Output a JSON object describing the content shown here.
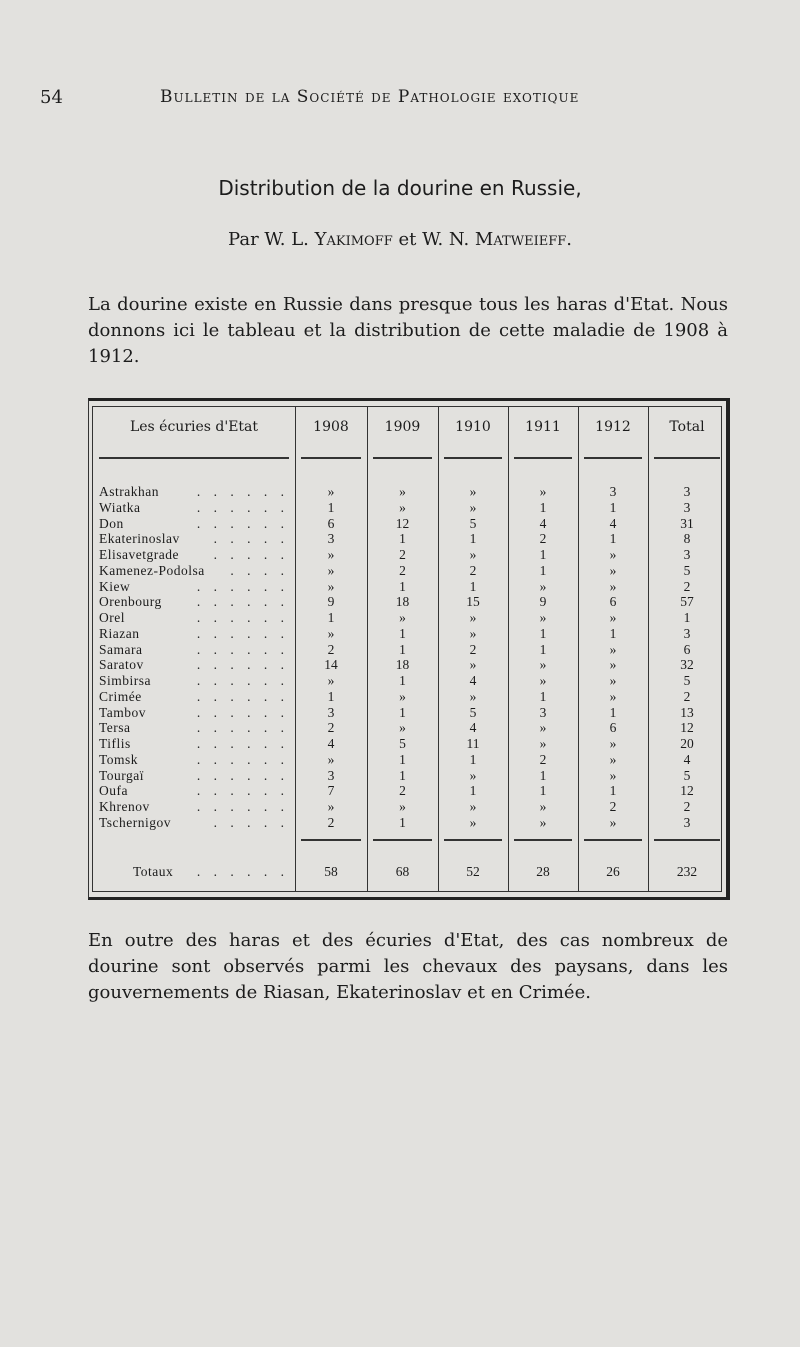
{
  "page_number": "54",
  "running_header": "Bulletin de la Société de Pathologie exotique",
  "title": "Distribution de la dourine en Russie,",
  "authors": {
    "prefix": "Par",
    "author1": "W. L. Yakimoff",
    "conj": "et",
    "author2": "W. N. Matweieff."
  },
  "intro": "La dourine existe en Russie dans presque tous les haras d'Etat. Nous donnons ici le tableau et la distribution de cette maladie de 1908 à 1912.",
  "table": {
    "headers": [
      "Les écuries d'Etat",
      "1908",
      "1909",
      "1910",
      "1911",
      "1912",
      "Total"
    ],
    "rows": [
      [
        "Astrakhan",
        "»",
        "»",
        "»",
        "»",
        "3",
        "3"
      ],
      [
        "Wiatka",
        "1",
        "»",
        "»",
        "1",
        "1",
        "3"
      ],
      [
        "Don",
        "6",
        "12",
        "5",
        "4",
        "4",
        "31"
      ],
      [
        "Ekaterinoslav",
        "3",
        "1",
        "1",
        "2",
        "1",
        "8"
      ],
      [
        "Elisavetgrade",
        "»",
        "2",
        "»",
        "1",
        "»",
        "3"
      ],
      [
        "Kamenez-Podolsa",
        "»",
        "2",
        "2",
        "1",
        "»",
        "5"
      ],
      [
        "Kiew",
        "»",
        "1",
        "1",
        "»",
        "»",
        "2"
      ],
      [
        "Orenbourg",
        "9",
        "18",
        "15",
        "9",
        "6",
        "57"
      ],
      [
        "Orel",
        "1",
        "»",
        "»",
        "»",
        "»",
        "1"
      ],
      [
        "Riazan",
        "»",
        "1",
        "»",
        "1",
        "1",
        "3"
      ],
      [
        "Samara",
        "2",
        "1",
        "2",
        "1",
        "»",
        "6"
      ],
      [
        "Saratov",
        "14",
        "18",
        "»",
        "»",
        "»",
        "32"
      ],
      [
        "Simbirsa",
        "»",
        "1",
        "4",
        "»",
        "»",
        "5"
      ],
      [
        "Crimée",
        "1",
        "»",
        "»",
        "1",
        "»",
        "2"
      ],
      [
        "Tambov",
        "3",
        "1",
        "5",
        "3",
        "1",
        "13"
      ],
      [
        "Tersa",
        "2",
        "»",
        "4",
        "»",
        "6",
        "12"
      ],
      [
        "Tiflis",
        "4",
        "5",
        "11",
        "»",
        "»",
        "20"
      ],
      [
        "Tomsk",
        "»",
        "1",
        "1",
        "2",
        "»",
        "4"
      ],
      [
        "Tourgaï",
        "3",
        "1",
        "»",
        "1",
        "»",
        "5"
      ],
      [
        "Oufa",
        "7",
        "2",
        "1",
        "1",
        "1",
        "12"
      ],
      [
        "Khrenov",
        "»",
        "»",
        "»",
        "»",
        "2",
        "2"
      ],
      [
        "Tschernigov",
        "2",
        "1",
        "»",
        "»",
        "»",
        "3"
      ]
    ],
    "totals": [
      "Totaux",
      "58",
      "68",
      "52",
      "28",
      "26",
      "232"
    ]
  },
  "outro": "En outre des haras et des écuries d'Etat, des cas nombreux de dourine sont observés parmi les chevaux des paysans, dans les gouvernements de Riasan, Ekaterinoslav et en Crimée."
}
